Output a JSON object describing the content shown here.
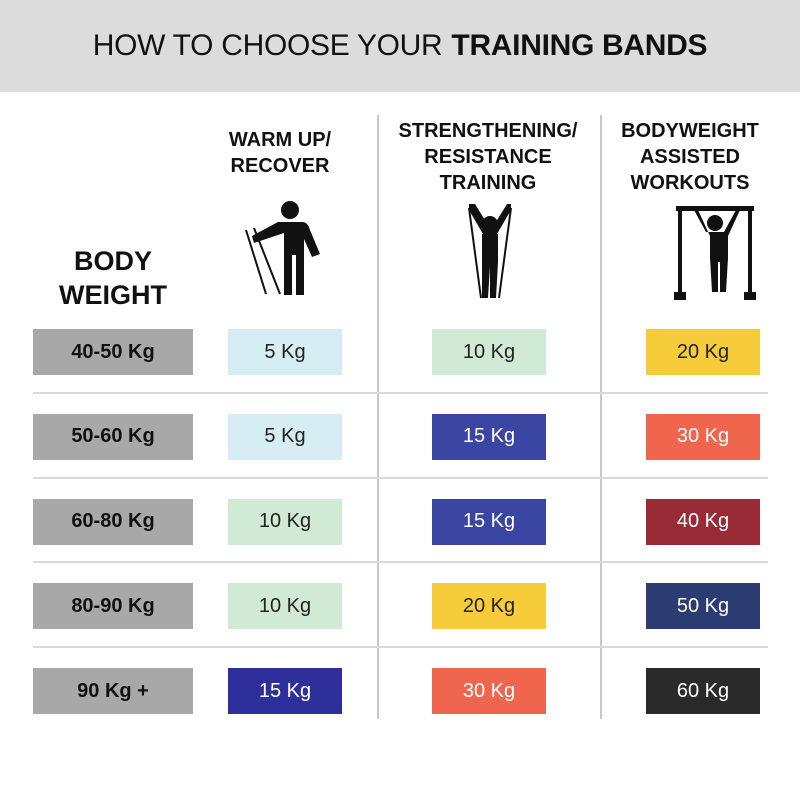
{
  "header": {
    "title_plain": "HOW TO CHOOSE YOUR",
    "title_bold": "TRAINING BANDS"
  },
  "columns": [
    {
      "lines": [
        "BODY",
        "WEIGHT"
      ]
    },
    {
      "lines": [
        "WARM UP/",
        "RECOVER"
      ]
    },
    {
      "lines": [
        "STRENGTHENING/",
        "RESISTANCE",
        "TRAINING"
      ]
    },
    {
      "lines": [
        "BODYWEIGHT",
        "ASSISTED",
        "WORKOUTS"
      ]
    }
  ],
  "rows": [
    {
      "weight": "40-50 Kg",
      "bands": [
        {
          "text": "5 Kg",
          "color": "#d6edf3"
        },
        {
          "text": "10 Kg",
          "color": "#d1ead5"
        },
        {
          "text": "20 Kg",
          "color": "#f7cc3a"
        }
      ]
    },
    {
      "weight": "50-60 Kg",
      "bands": [
        {
          "text": "5 Kg",
          "color": "#d6edf3"
        },
        {
          "text": "15 Kg",
          "color": "#3b46a3"
        },
        {
          "text": "30 Kg",
          "color": "#f0654e"
        }
      ]
    },
    {
      "weight": "60-80 Kg",
      "bands": [
        {
          "text": "10 Kg",
          "color": "#d1ead5"
        },
        {
          "text": "15 Kg",
          "color": "#3b46a3"
        },
        {
          "text": "40 Kg",
          "color": "#982b36"
        }
      ]
    },
    {
      "weight": "80-90 Kg",
      "bands": [
        {
          "text": "10 Kg",
          "color": "#d1ead5"
        },
        {
          "text": "20 Kg",
          "color": "#f7cc3a"
        },
        {
          "text": "50 Kg",
          "color": "#2c3c72"
        }
      ]
    },
    {
      "weight": "90 Kg +",
      "bands": [
        {
          "text": "15 Kg",
          "color": "#2f2f9c"
        },
        {
          "text": "30 Kg",
          "color": "#f0654e"
        },
        {
          "text": "60 Kg",
          "color": "#2a2a2a"
        }
      ]
    }
  ],
  "weight_color": "#a8a8a8"
}
